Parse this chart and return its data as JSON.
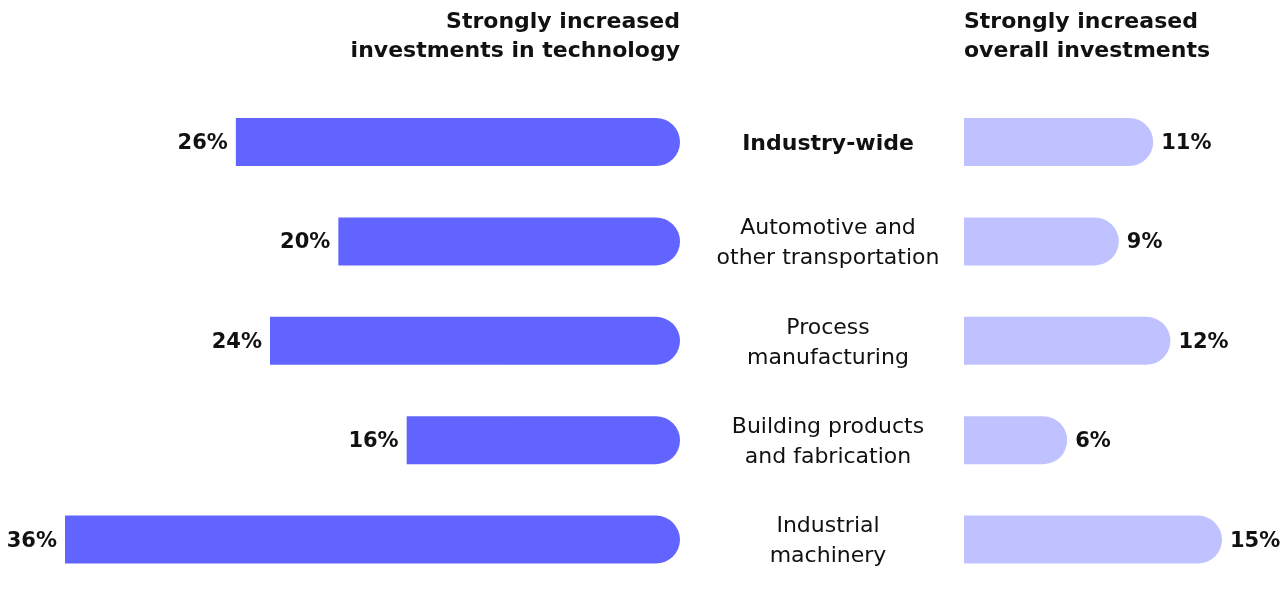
{
  "chart_data": [
    {
      "type": "bar",
      "orientation": "horizontal",
      "title": "Strongly increased investments in technology",
      "categories": [
        "Industry-wide",
        "Automotive and other transportation",
        "Process manufacturing",
        "Building products and fabrication",
        "Industrial machinery"
      ],
      "values": [
        26,
        20,
        24,
        16,
        36
      ],
      "value_labels": [
        "26%",
        "20%",
        "24%",
        "16%",
        "36%"
      ],
      "color": "#6264ff",
      "xlim": [
        36,
        0
      ],
      "tick_labels": "y"
    },
    {
      "type": "bar",
      "orientation": "horizontal",
      "title": "Strongly increased overall investments",
      "categories": [
        null,
        null,
        null,
        null,
        null
      ],
      "values": [
        11,
        9,
        12,
        6,
        15
      ],
      "value_labels": [
        "11%",
        "9%",
        "12%",
        "6%",
        "15%"
      ],
      "color": "#c0c2ff",
      "xlim": [
        0,
        15
      ],
      "tick_labels": false
    }
  ]
}
